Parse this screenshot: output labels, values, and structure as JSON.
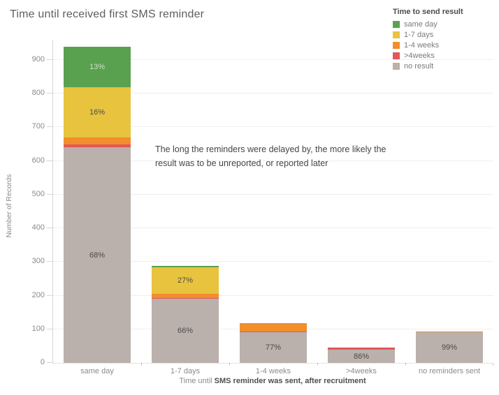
{
  "title": "Time until received first SMS reminder",
  "legend": {
    "title": "Time to send result",
    "items": [
      {
        "label": "same day",
        "color": "#59A14F"
      },
      {
        "label": "1-7 days",
        "color": "#E8C33E"
      },
      {
        "label": "1-4 weeks",
        "color": "#F28E2B"
      },
      {
        "label": ">4weeks",
        "color": "#E15759"
      },
      {
        "label": "no result",
        "color": "#BAB0AC"
      }
    ]
  },
  "annotation": {
    "line1": "The long the reminders were delayed by, the more likely the",
    "line2": "result was to be unreported, or reported later"
  },
  "axes": {
    "y_title": "Number of Records",
    "y_ticks": [
      0,
      100,
      200,
      300,
      400,
      500,
      600,
      700,
      800,
      900
    ],
    "x_title_normal": "Time until ",
    "x_title_bold": "SMS reminder was sent, after recruitment"
  },
  "chart_data": {
    "type": "bar",
    "stacked": true,
    "title": "Time until received first SMS reminder",
    "xlabel": "Time until SMS reminder was sent, after recruitment",
    "ylabel": "Number of Records",
    "ylim": [
      0,
      950
    ],
    "grid": true,
    "legend_position": "top-right",
    "legend_title": "Time to send result",
    "categories": [
      "same day",
      "1-7 days",
      "1-4 weeks",
      ">4weeks",
      "no reminders sent"
    ],
    "totals": [
      940,
      288,
      118,
      45,
      94
    ],
    "series": [
      {
        "name": "no result",
        "color": "#BAB0AC",
        "values": [
          640,
          190,
          91,
          39,
          92
        ],
        "labels": [
          "68%",
          "66%",
          "77%",
          "86%",
          "99%"
        ],
        "label_color": "#4b4b4b"
      },
      {
        "name": ">4weeks",
        "color": "#E15759",
        "values": [
          10,
          3,
          3,
          6,
          0
        ],
        "labels": [
          null,
          null,
          null,
          null,
          null
        ],
        "label_color": "#4b4b4b"
      },
      {
        "name": "1-4 weeks",
        "color": "#F28E2B",
        "values": [
          19,
          13,
          24,
          0,
          2
        ],
        "labels": [
          null,
          null,
          null,
          null,
          null
        ],
        "label_color": "#4b4b4b"
      },
      {
        "name": "1-7 days",
        "color": "#E8C33E",
        "values": [
          150,
          78,
          0,
          0,
          0
        ],
        "labels": [
          "16%",
          "27%",
          null,
          null,
          null
        ],
        "label_color": "#4b4b4b"
      },
      {
        "name": "same day",
        "color": "#59A14F",
        "values": [
          121,
          4,
          0,
          0,
          0
        ],
        "labels": [
          "13%",
          null,
          null,
          null,
          null
        ],
        "label_color": "#cfe0ca"
      }
    ]
  }
}
